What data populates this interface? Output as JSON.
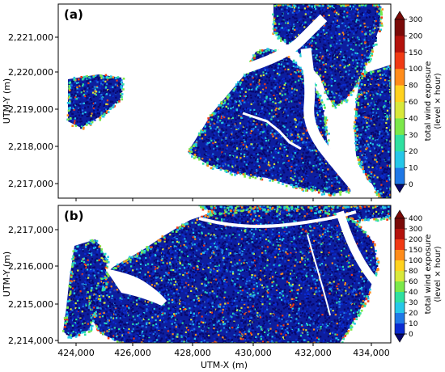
{
  "panels": [
    {
      "label": "(a)",
      "ylabel": "UTM-Y (m)",
      "yticks": [
        "2,221,000",
        "2,220,000",
        "2,219,000",
        "2,218,000",
        "2,217,000"
      ],
      "colorbar": {
        "label_line1": "total wind exposure",
        "label_line2": "(level × hour)",
        "ticks": [
          "300",
          "200",
          "150",
          "100",
          "80",
          "60",
          "40",
          "30",
          "20",
          "10",
          "0"
        ]
      }
    },
    {
      "label": "(b)",
      "ylabel": "UTM-Y (m)",
      "xlabel": "UTM-X (m)",
      "yticks": [
        "2,217,000",
        "2,216,000",
        "2,215,000",
        "2,214,000"
      ],
      "xticks": [
        "424,000",
        "426,000",
        "428,000",
        "430,000",
        "432,000",
        "434,000"
      ],
      "colorbar": {
        "label_line1": "total wind exposure",
        "label_line2": "(level × hour)",
        "ticks": [
          "400",
          "300",
          "200",
          "150",
          "100",
          "80",
          "60",
          "40",
          "30",
          "20",
          "10",
          "0"
        ]
      }
    }
  ],
  "colors": {
    "water": "#ffffff",
    "land_base": "#0b1d9c",
    "scale": [
      "#08086e",
      "#0a2bd0",
      "#1f78e6",
      "#26c7e8",
      "#2fe0a0",
      "#7be84a",
      "#d8e83a",
      "#ffd21e",
      "#ff8c1a",
      "#f03a14",
      "#b3120c",
      "#7a0a08"
    ]
  }
}
